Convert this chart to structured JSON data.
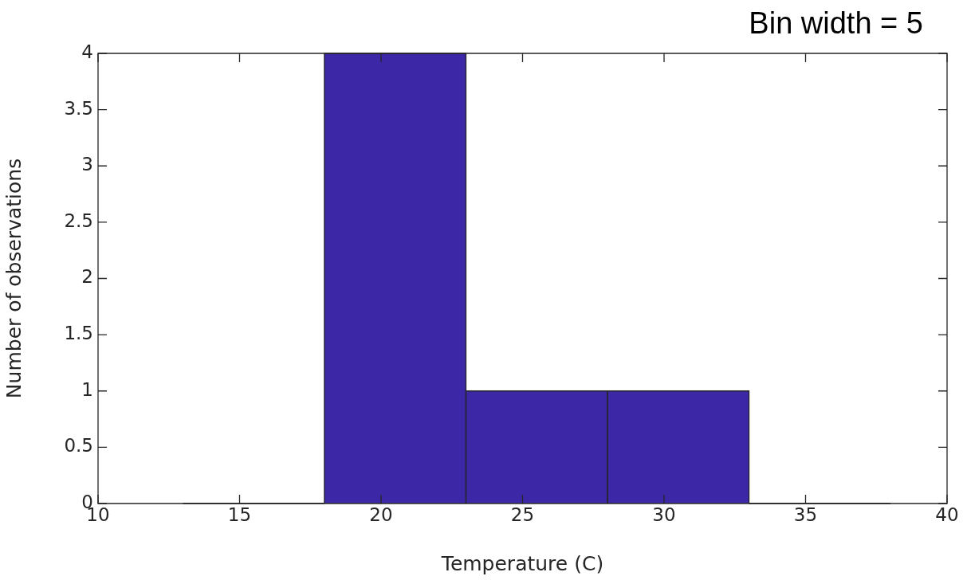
{
  "chart_data": {
    "type": "histogram",
    "xlabel": "Temperature (C)",
    "ylabel": "Number of observations",
    "annotations": [
      "Bin width = 5"
    ],
    "bins": [
      13,
      18,
      23,
      28,
      33,
      38
    ],
    "values": [
      0,
      4,
      1,
      1,
      0
    ],
    "color": "#3c28a6",
    "xlim": [
      10,
      40
    ],
    "xticks": [
      10,
      15,
      20,
      25,
      30,
      35,
      40
    ],
    "ylim": [
      0,
      4
    ],
    "yticks": [
      0,
      0.5,
      1,
      1.5,
      2,
      2.5,
      3,
      3.5,
      4
    ],
    "grid": false,
    "legend": false
  }
}
